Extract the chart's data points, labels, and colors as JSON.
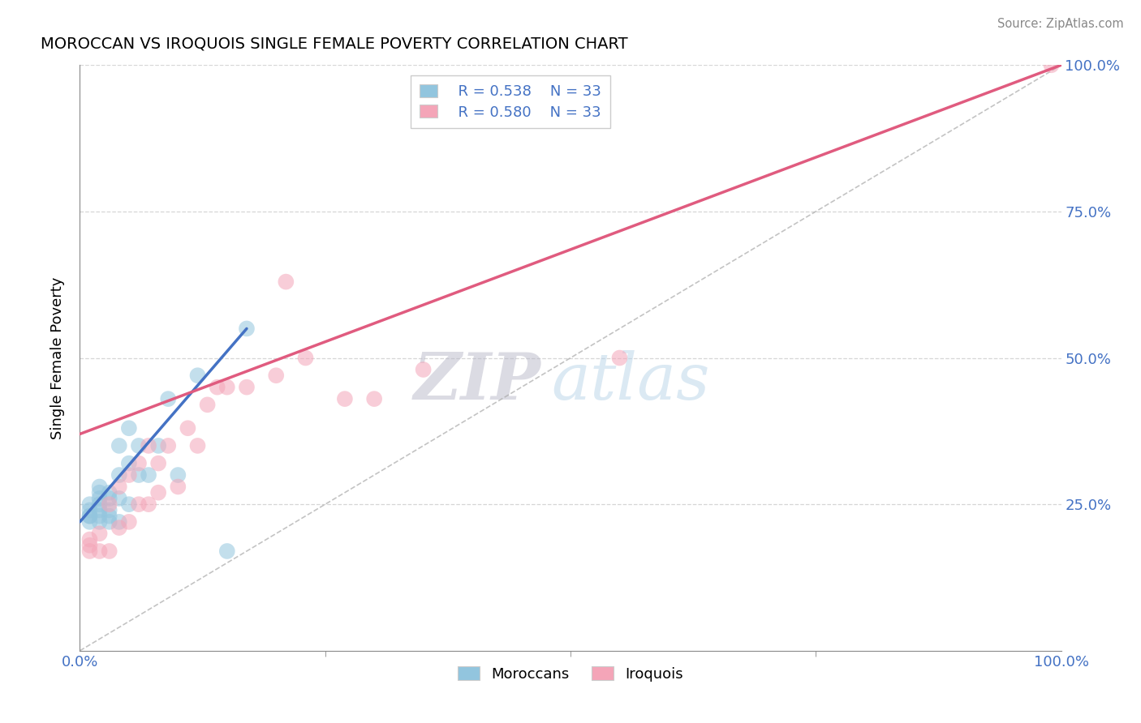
{
  "title": "MOROCCAN VS IROQUOIS SINGLE FEMALE POVERTY CORRELATION CHART",
  "source": "Source: ZipAtlas.com",
  "ylabel": "Single Female Poverty",
  "xlim": [
    0,
    1.0
  ],
  "ylim": [
    0,
    1.0
  ],
  "legend_r1": "R = 0.538",
  "legend_n1": "N = 33",
  "legend_r2": "R = 0.580",
  "legend_n2": "N = 33",
  "blue_color": "#92c5de",
  "pink_color": "#f4a5b8",
  "blue_line_color": "#4472c4",
  "pink_line_color": "#e05b7f",
  "diagonal_color": "#aaaaaa",
  "watermark_zip": "ZIP",
  "watermark_atlas": "atlas",
  "moroccan_x": [
    0.01,
    0.01,
    0.01,
    0.01,
    0.01,
    0.02,
    0.02,
    0.02,
    0.02,
    0.02,
    0.02,
    0.02,
    0.03,
    0.03,
    0.03,
    0.03,
    0.03,
    0.04,
    0.04,
    0.04,
    0.04,
    0.05,
    0.05,
    0.05,
    0.06,
    0.06,
    0.07,
    0.08,
    0.09,
    0.1,
    0.12,
    0.15,
    0.17
  ],
  "moroccan_y": [
    0.22,
    0.23,
    0.23,
    0.24,
    0.25,
    0.22,
    0.23,
    0.24,
    0.25,
    0.26,
    0.27,
    0.28,
    0.22,
    0.23,
    0.24,
    0.26,
    0.27,
    0.22,
    0.26,
    0.3,
    0.35,
    0.25,
    0.32,
    0.38,
    0.3,
    0.35,
    0.3,
    0.35,
    0.43,
    0.3,
    0.47,
    0.17,
    0.55
  ],
  "iroquois_x": [
    0.01,
    0.01,
    0.01,
    0.02,
    0.02,
    0.03,
    0.03,
    0.04,
    0.04,
    0.05,
    0.05,
    0.06,
    0.06,
    0.07,
    0.07,
    0.08,
    0.08,
    0.09,
    0.1,
    0.11,
    0.12,
    0.13,
    0.14,
    0.15,
    0.17,
    0.2,
    0.21,
    0.23,
    0.27,
    0.3,
    0.35,
    0.55,
    0.99
  ],
  "iroquois_y": [
    0.17,
    0.18,
    0.19,
    0.17,
    0.2,
    0.17,
    0.25,
    0.21,
    0.28,
    0.22,
    0.3,
    0.25,
    0.32,
    0.25,
    0.35,
    0.27,
    0.32,
    0.35,
    0.28,
    0.38,
    0.35,
    0.42,
    0.45,
    0.45,
    0.45,
    0.47,
    0.63,
    0.5,
    0.43,
    0.43,
    0.48,
    0.5,
    1.0
  ],
  "blue_trend_x": [
    0.0,
    0.17
  ],
  "blue_trend_y": [
    0.22,
    0.55
  ],
  "pink_trend_x": [
    0.0,
    1.0
  ],
  "pink_trend_y": [
    0.37,
    1.0
  ]
}
